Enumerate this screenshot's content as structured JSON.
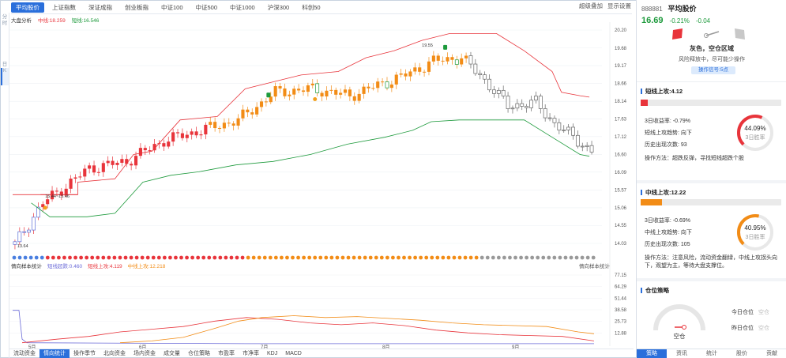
{
  "top_tabs": [
    "平均股价",
    "上证指数",
    "深证成指",
    "创业板指",
    "中证100",
    "中证500",
    "中证1000",
    "沪深300",
    "科创50"
  ],
  "top_right": [
    "超级叠加",
    "显示设置"
  ],
  "left_rail": {
    "top": "分时",
    "mid": "日K"
  },
  "main_legend": {
    "name": "大盘分析",
    "upper_label": "中线:18.259",
    "lower_label": "短线:16.546"
  },
  "price_axis": [
    "20.20",
    "19.68",
    "19.17",
    "18.66",
    "18.14",
    "17.63",
    "17.12",
    "16.60",
    "16.09",
    "15.57",
    "15.06",
    "14.55",
    "14.03"
  ],
  "annotations": {
    "low": "13.64",
    "mid": "15.44~15.46",
    "high": "19.55"
  },
  "indicator_legend": {
    "name": "情向样本统计",
    "short": "短线超跌:0.460",
    "mid_down": "短线上攻:4.119",
    "mid_up": "中线上攻:12.218"
  },
  "indicator_right": "情向样本统计",
  "indicator_axis": [
    "77.15",
    "64.29",
    "51.44",
    "38.58",
    "25.73",
    "12.88"
  ],
  "months": [
    "5月",
    "6月",
    "7月",
    "8月",
    "9月"
  ],
  "bottom_tabs": [
    "流动资金",
    "情向统计",
    "操作季节",
    "北向资金",
    "场内资金",
    "成交量",
    "仓位策略",
    "市盈率",
    "市净率",
    "KDJ",
    "MACD"
  ],
  "stock": {
    "code": "888881",
    "name": "平均股价",
    "price": "16.69",
    "pct": "-0.21%",
    "change": "-0.04"
  },
  "signal": {
    "title": "灰色，空仓区域",
    "subtitle": "风险释放中，尽可能少操作",
    "badge": "操作信号:5点"
  },
  "short_attack": {
    "title": "短线上攻:4.12",
    "fill": 0.05,
    "color": "#e8343b",
    "ret_label": "3日收益率:",
    "ret": "-0.79%",
    "trend_label": "短线上攻趋势:",
    "trend": "向下",
    "hist_label": "历史出现次数:",
    "hist": "93",
    "ring_pct": "44.09%",
    "ring_value": 0.4409,
    "ring_label": "3日胜率",
    "method": "操作方法：超跌反弹，寻找短线超跌个股"
  },
  "mid_attack": {
    "title": "中线上攻:12.22",
    "fill": 0.15,
    "color": "#f28c16",
    "ret_label": "3日收益率:",
    "ret": "-0.69%",
    "trend_label": "中线上攻趋势:",
    "trend": "向下",
    "hist_label": "历史出现次数:",
    "hist": "105",
    "ring_pct": "40.95%",
    "ring_value": 0.4095,
    "ring_label": "3日胜率",
    "method": "操作方法：注意风险，流动资金翻绿，中线上攻拐头向下，观望为主，等待大盘支撑位。"
  },
  "position": {
    "title": "仓位策略",
    "gauge_label": "空仓",
    "today": "今日仓位",
    "yesterday": "昨日仓位",
    "today_val": "空仓",
    "yesterday_val": "空仓"
  },
  "right_tabs": [
    "策略",
    "资讯",
    "统计",
    "股价",
    "贡献"
  ],
  "colors": {
    "up": "#e8343b",
    "mid": "#f28c16",
    "down": "#1d9a3c",
    "neutral": "#888888",
    "accent": "#2a6fdb"
  }
}
